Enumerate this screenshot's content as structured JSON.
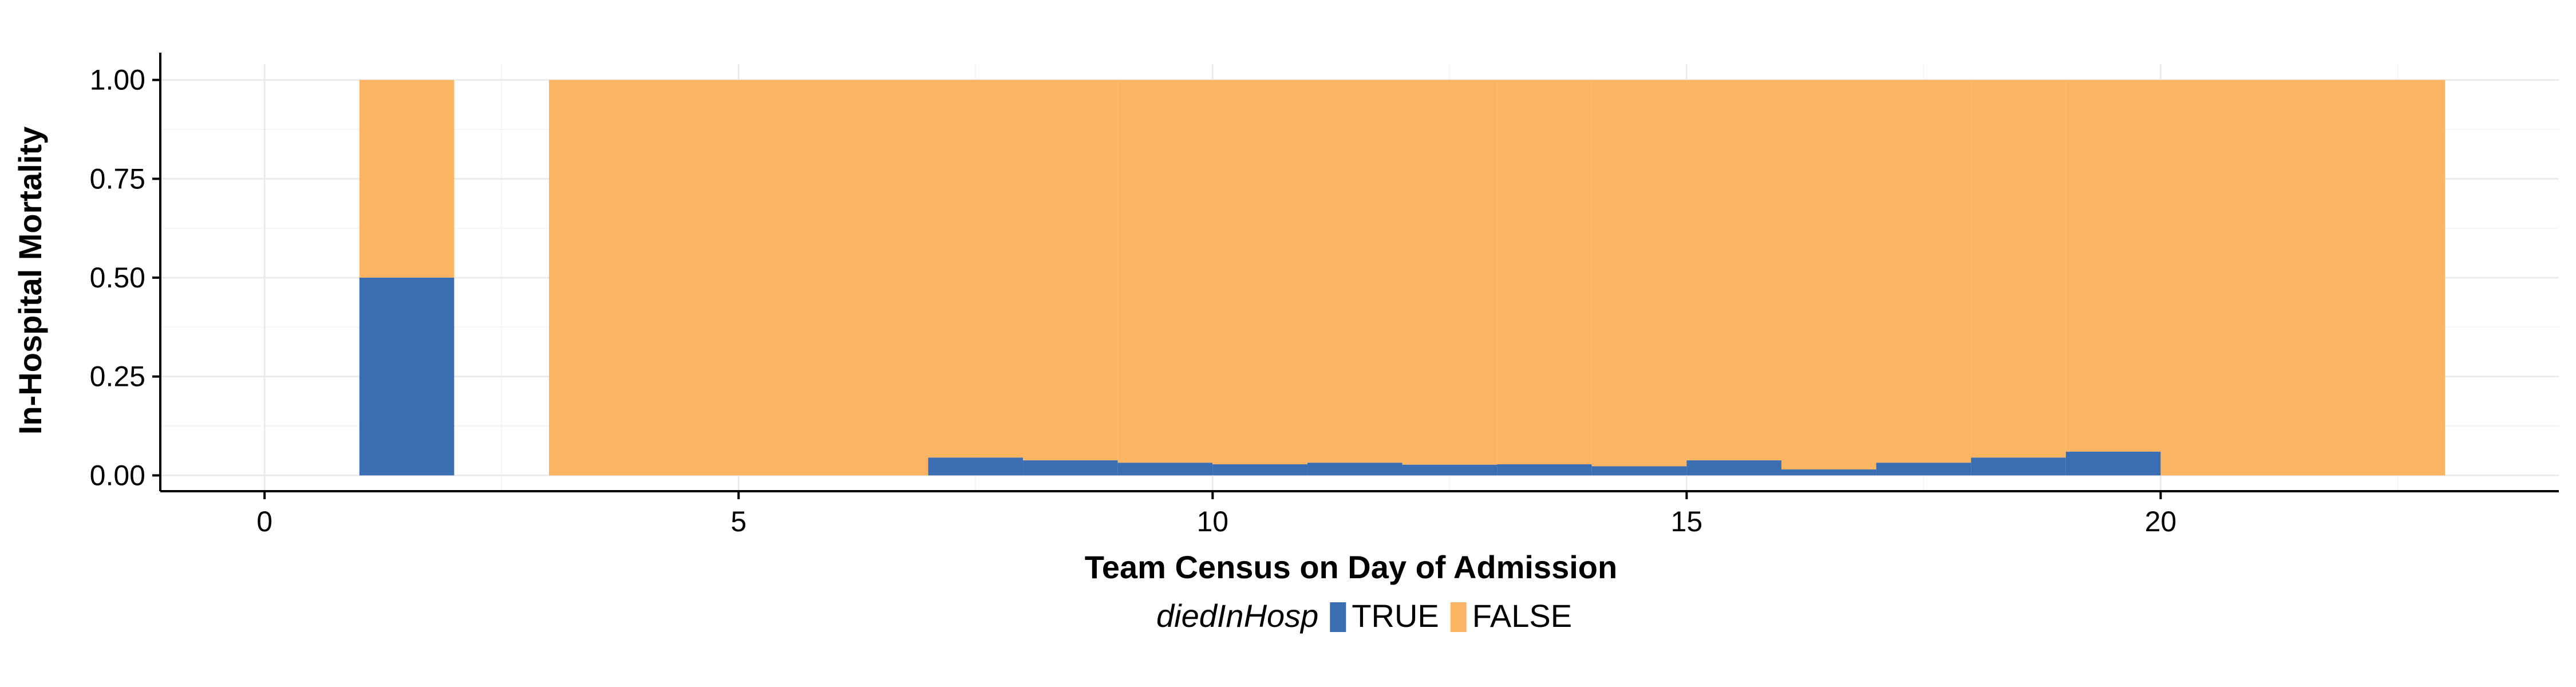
{
  "chart_data": {
    "type": "bar",
    "stacked": true,
    "xlabel": "Team Census on Day of Admission",
    "ylabel": "In-Hospital Mortality",
    "xlim": [
      -1.1,
      24.2
    ],
    "ylim": [
      -0.04,
      1.04
    ],
    "x_ticks": [
      0,
      5,
      10,
      15,
      20
    ],
    "x_tick_labels": [
      "0",
      "5",
      "10",
      "15",
      "20"
    ],
    "y_ticks": [
      0,
      0.25,
      0.5,
      0.75,
      1.0
    ],
    "y_tick_labels": [
      "0.00",
      "0.25",
      "0.50",
      "0.75",
      "1.00"
    ],
    "grid": true,
    "legend": {
      "title": "diedInHosp",
      "placement": "bottom",
      "entries": [
        {
          "label": "TRUE",
          "color": "#3B6DB2"
        },
        {
          "label": "FALSE",
          "color": "#FBB462"
        }
      ]
    },
    "bins": [
      {
        "start": 1,
        "end": 2,
        "true": 0.5
      },
      {
        "start": 3,
        "end": 7,
        "true": 0.0
      },
      {
        "start": 7,
        "end": 8,
        "true": 0.045
      },
      {
        "start": 8,
        "end": 9,
        "true": 0.038
      },
      {
        "start": 9,
        "end": 10,
        "true": 0.032
      },
      {
        "start": 10,
        "end": 11,
        "true": 0.028
      },
      {
        "start": 11,
        "end": 12,
        "true": 0.032
      },
      {
        "start": 12,
        "end": 13,
        "true": 0.027
      },
      {
        "start": 13,
        "end": 14,
        "true": 0.028
      },
      {
        "start": 14,
        "end": 15,
        "true": 0.023
      },
      {
        "start": 15,
        "end": 16,
        "true": 0.038
      },
      {
        "start": 16,
        "end": 17,
        "true": 0.015
      },
      {
        "start": 17,
        "end": 18,
        "true": 0.032
      },
      {
        "start": 18,
        "end": 19,
        "true": 0.045
      },
      {
        "start": 19,
        "end": 20,
        "true": 0.06
      },
      {
        "start": 20,
        "end": 23,
        "true": 0.0
      }
    ]
  }
}
